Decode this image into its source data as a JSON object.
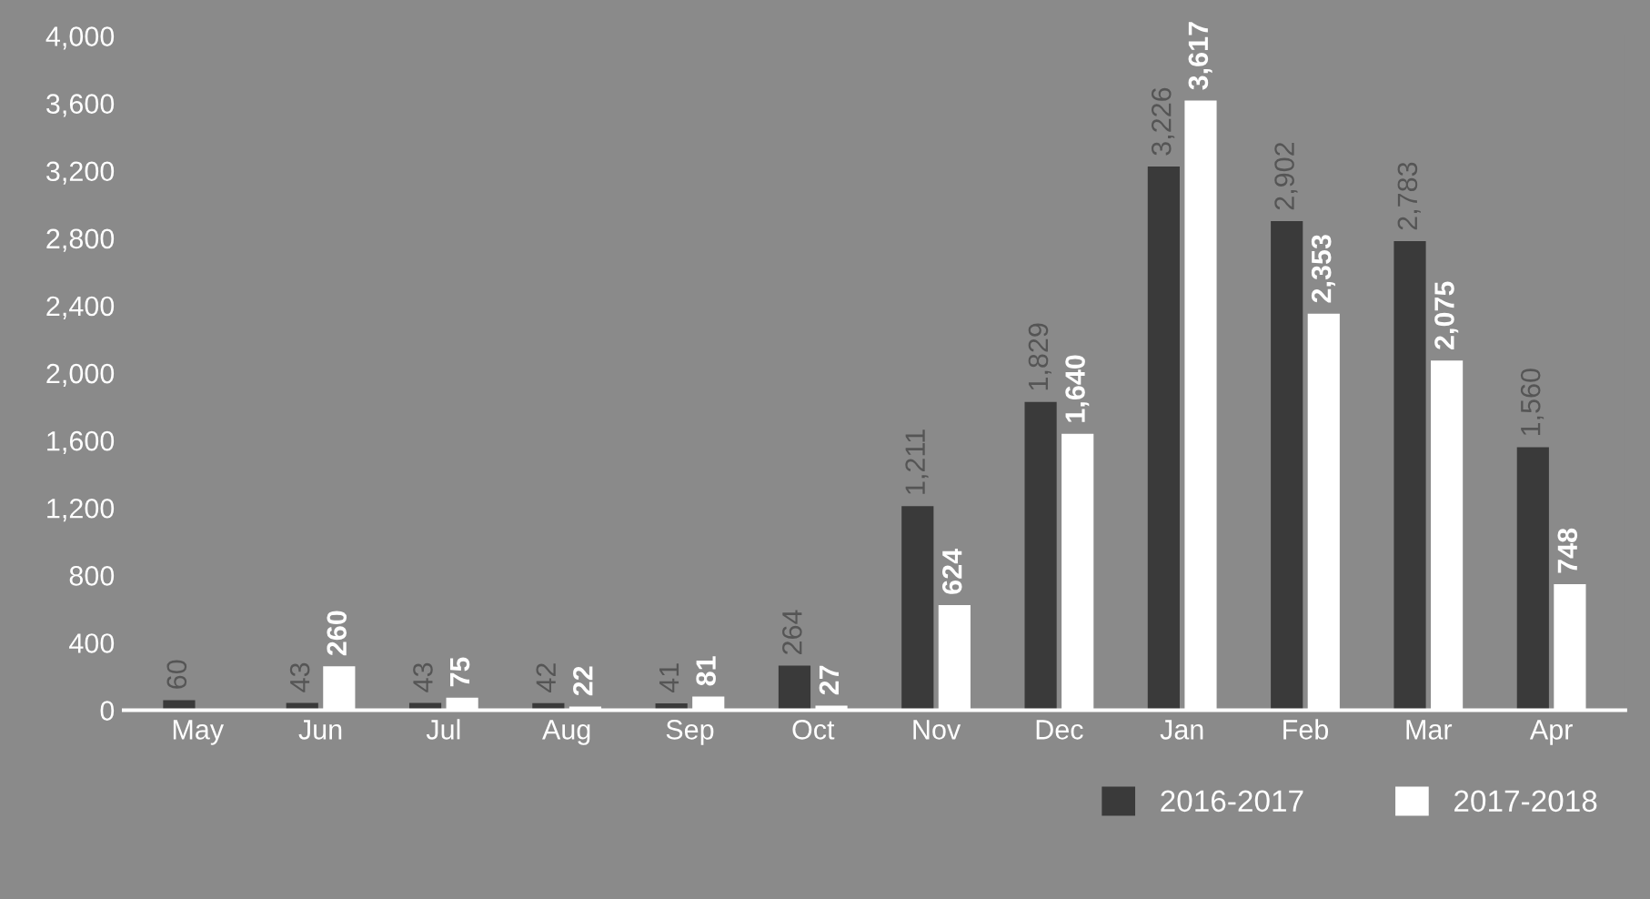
{
  "chart_data": {
    "type": "bar",
    "categories": [
      "May",
      "Jun",
      "Jul",
      "Aug",
      "Sep",
      "Oct",
      "Nov",
      "Dec",
      "Jan",
      "Feb",
      "Mar",
      "Apr"
    ],
    "series": [
      {
        "name": "2016-2017",
        "color": "#3a3a3a",
        "values": [
          60,
          43,
          43,
          42,
          41,
          264,
          1211,
          1829,
          3226,
          2902,
          2783,
          1560
        ],
        "value_labels": [
          "60",
          "43",
          "43",
          "42",
          "41",
          "264",
          "1,211",
          "1,829",
          "3,226",
          "2,902",
          "2,783",
          "1,560"
        ]
      },
      {
        "name": "2017-2018",
        "color": "#ffffff",
        "values": [
          0,
          260,
          75,
          22,
          81,
          27,
          624,
          1640,
          3617,
          2353,
          2075,
          748
        ],
        "value_labels": [
          null,
          "260",
          "75",
          "22",
          "81",
          "27",
          "624",
          "1,640",
          "3,617",
          "2,353",
          "2,075",
          "748"
        ]
      }
    ],
    "ylim": [
      0,
      4000
    ],
    "yticks": [
      {
        "value": 0,
        "label": "0"
      },
      {
        "value": 400,
        "label": "400"
      },
      {
        "value": 800,
        "label": "800"
      },
      {
        "value": 1200,
        "label": "1,200"
      },
      {
        "value": 1600,
        "label": "1,600"
      },
      {
        "value": 2000,
        "label": "2,000"
      },
      {
        "value": 2400,
        "label": "2,400"
      },
      {
        "value": 2800,
        "label": "2,800"
      },
      {
        "value": 3200,
        "label": "3,200"
      },
      {
        "value": 3600,
        "label": "3,600"
      },
      {
        "value": 4000,
        "label": "4,000"
      }
    ],
    "grid": false,
    "legend": "bottom right"
  }
}
